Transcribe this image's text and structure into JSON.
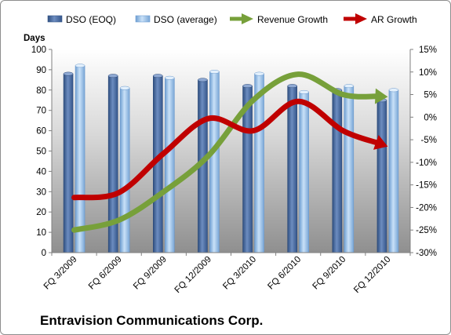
{
  "chart_data": {
    "type": "bar",
    "title": "Entravision Communications Corp.",
    "ylabel": "Days",
    "ylim": [
      0,
      100
    ],
    "y_ticks": [
      "0",
      "10",
      "20",
      "30",
      "40",
      "50",
      "60",
      "70",
      "80",
      "90",
      "100"
    ],
    "y2lim": [
      -30,
      15
    ],
    "y2_ticks": [
      "-30%",
      "-25%",
      "-20%",
      "-15%",
      "-10%",
      "-5%",
      "0%",
      "5%",
      "10%",
      "15%"
    ],
    "categories": [
      "FQ 3/2009",
      "FQ 6/2009",
      "FQ 9/2009",
      "FQ 12/2009",
      "FQ 3/2010",
      "FQ 6/2010",
      "FQ 9/2010",
      "FQ 12/2010"
    ],
    "legend_position": "top",
    "grid": false,
    "series": [
      {
        "name": "DSO (EOQ)",
        "kind": "bar",
        "axis": "left",
        "color": "#4f6fa3",
        "values": [
          88,
          87,
          87,
          85,
          82,
          82,
          80,
          75
        ]
      },
      {
        "name": "DSO (average)",
        "kind": "bar",
        "axis": "left",
        "color": "#9ec3ea",
        "values": [
          92,
          81,
          86,
          89,
          88,
          79,
          82,
          80
        ]
      },
      {
        "name": "Revenue Growth",
        "kind": "line-arrow",
        "axis": "right",
        "color": "#77a03a",
        "values": [
          -25,
          -22.8,
          -16.5,
          -8.5,
          3.8,
          9.5,
          5,
          4.5
        ]
      },
      {
        "name": "AR Growth",
        "kind": "line-arrow",
        "axis": "right",
        "color": "#c00000",
        "values": [
          -17.8,
          -16.7,
          -8,
          -0.3,
          -3,
          3.5,
          -3,
          -6.5
        ]
      }
    ]
  }
}
